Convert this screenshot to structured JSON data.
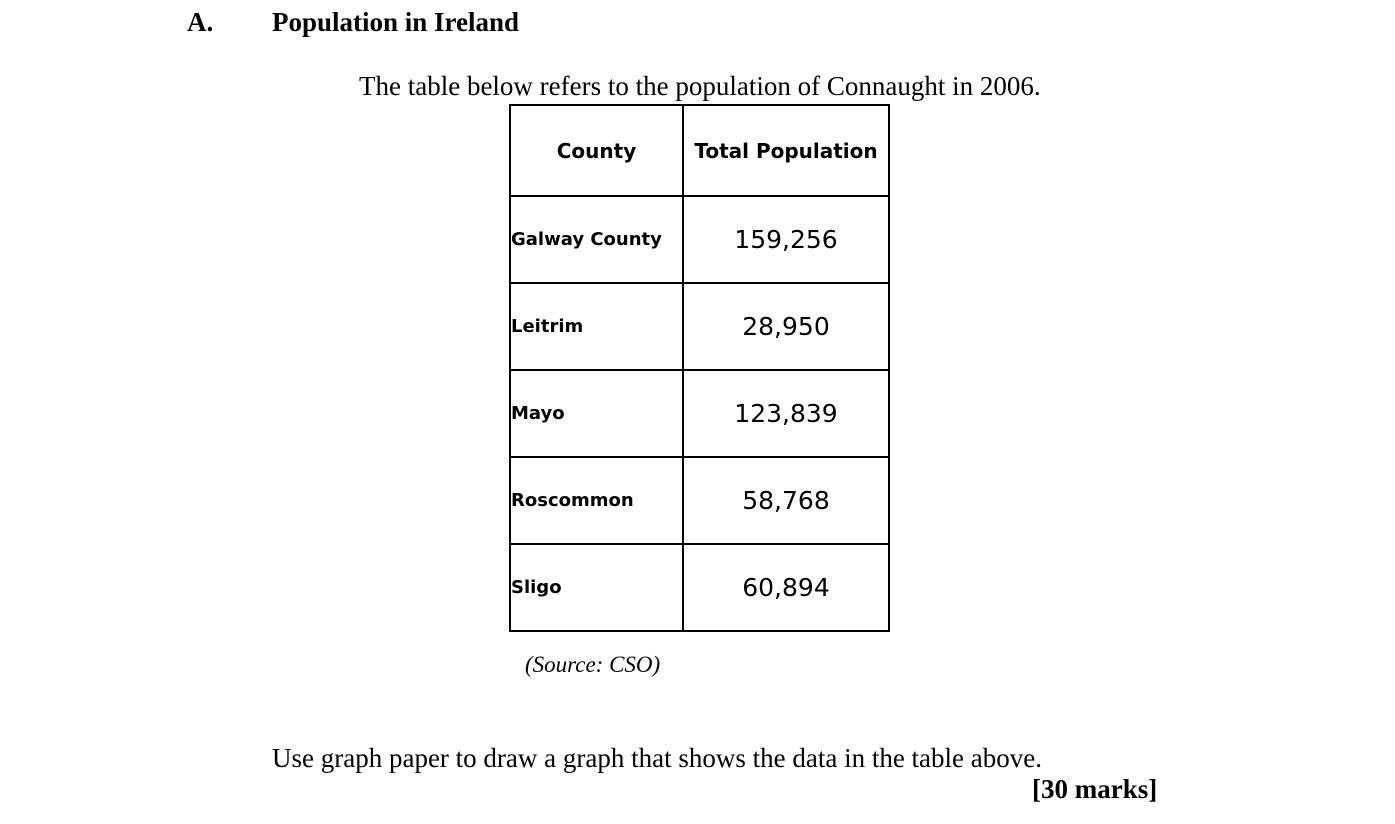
{
  "section": {
    "letter": "A.",
    "title": "Population in Ireland"
  },
  "intro": "The table below refers to the population of Connaught in 2006.",
  "table": {
    "headers": [
      "County",
      "Total Population"
    ],
    "rows": [
      [
        "Galway County",
        "159,256"
      ],
      [
        "Leitrim",
        "28,950"
      ],
      [
        "Mayo",
        "123,839"
      ],
      [
        "Roscommon",
        "58,768"
      ],
      [
        "Sligo",
        "60,894"
      ]
    ]
  },
  "source": "(Source: CSO)",
  "instruction": "Use graph paper to draw a graph that shows the data in the table above.",
  "marks": "[30 marks]"
}
